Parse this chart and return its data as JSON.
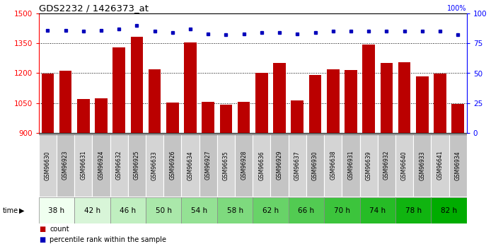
{
  "title": "GDS2232 / 1426373_at",
  "samples": [
    "GSM96630",
    "GSM96923",
    "GSM96631",
    "GSM96924",
    "GSM96632",
    "GSM96925",
    "GSM96633",
    "GSM96926",
    "GSM96634",
    "GSM96927",
    "GSM96635",
    "GSM96928",
    "GSM96636",
    "GSM96929",
    "GSM96637",
    "GSM96930",
    "GSM96638",
    "GSM96931",
    "GSM96639",
    "GSM96932",
    "GSM96640",
    "GSM96933",
    "GSM96641",
    "GSM96934"
  ],
  "counts": [
    1197,
    1212,
    1072,
    1075,
    1330,
    1383,
    1220,
    1053,
    1355,
    1057,
    1042,
    1055,
    1202,
    1250,
    1065,
    1190,
    1220,
    1215,
    1345,
    1250,
    1255,
    1185,
    1197,
    1045
  ],
  "percentiles": [
    86,
    86,
    85,
    86,
    87,
    90,
    85,
    84,
    87,
    83,
    82,
    83,
    84,
    84,
    83,
    84,
    85,
    85,
    85,
    85,
    85,
    85,
    85,
    82
  ],
  "time_labels": [
    "38 h",
    "42 h",
    "46 h",
    "50 h",
    "54 h",
    "58 h",
    "62 h",
    "66 h",
    "70 h",
    "74 h",
    "78 h",
    "82 h"
  ],
  "time_colors": [
    "#f0fff0",
    "#d8f5d8",
    "#c0efc0",
    "#aae8aa",
    "#94e194",
    "#7eda7e",
    "#68d368",
    "#52cb52",
    "#3cc43c",
    "#26bc26",
    "#10b410",
    "#00ac00"
  ],
  "ylim_left": [
    900,
    1500
  ],
  "ylim_right": [
    0,
    100
  ],
  "yticks_left": [
    900,
    1050,
    1200,
    1350,
    1500
  ],
  "yticks_right": [
    0,
    25,
    50,
    75,
    100
  ],
  "bar_color": "#bb0000",
  "dot_color": "#0000bb",
  "gsm_colors": [
    "#d4d4d4",
    "#c4c4c4"
  ]
}
